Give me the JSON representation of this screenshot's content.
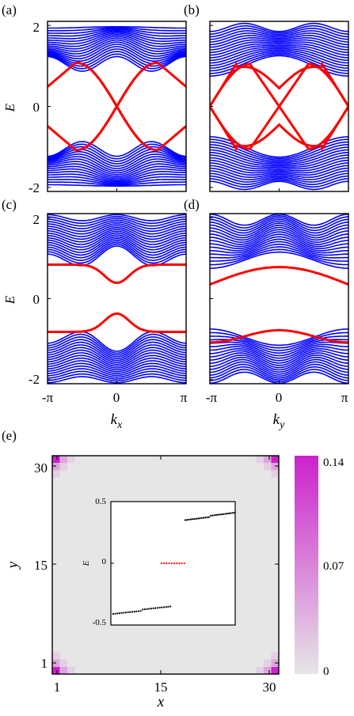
{
  "colors": {
    "bulk": "#0000ff",
    "edge": "#ff0000",
    "axis": "#000000",
    "map_low": "#e6e6e6",
    "map_high": "#cc22cc",
    "inset_bulk": "#000000",
    "inset_zero": "#ff0000"
  },
  "chart_data": [
    {
      "panel_label": "(a)",
      "type": "line",
      "xlabel": "",
      "ylabel": "E",
      "xlim": [
        -3.1416,
        3.1416
      ],
      "ylim": [
        -2.1,
        2.1
      ],
      "xticks": [],
      "yticks": [
        "2",
        "0",
        "-2"
      ],
      "bulk_gap": [
        0.9,
        1.1
      ],
      "edge_states_cross_zero_at": 0.0,
      "edge_energy_at_ky_pi": 0.42
    },
    {
      "panel_label": "(b)",
      "type": "line",
      "xlabel": "",
      "ylabel": "",
      "xlim": [
        -3.1416,
        3.1416
      ],
      "ylim": [
        -2.1,
        2.1
      ],
      "xticks": [],
      "yticks": [],
      "bulk_gap": [
        0.9,
        1.1
      ],
      "edge_states_cross_zero_at": -3.1416,
      "edge_energy_at_k0": 0.45
    },
    {
      "panel_label": "(c)",
      "type": "line",
      "xlabel": "k_x",
      "ylabel": "E",
      "xlim": [
        -3.1416,
        3.1416
      ],
      "ylim": [
        -2.1,
        2.1
      ],
      "xticks": [
        "-π",
        "0",
        "π"
      ],
      "yticks": [
        "2",
        "0",
        "-2"
      ],
      "edge_gap_min": 0.35,
      "edge_energy_at_boundary": 0.8
    },
    {
      "panel_label": "(d)",
      "type": "line",
      "xlabel": "k_y",
      "ylabel": "",
      "xlim": [
        -3.1416,
        3.1416
      ],
      "ylim": [
        -2.1,
        2.1
      ],
      "xticks": [
        "-π",
        "0",
        "π"
      ],
      "yticks": [],
      "edge_energy_at_k0": 0.78,
      "edge_energy_at_boundary": 0.35
    },
    {
      "panel_label": "(e)",
      "type": "heatmap",
      "xlabel": "x",
      "ylabel": "y",
      "xticks": [
        "1",
        "15",
        "30"
      ],
      "yticks": [
        "30",
        "15",
        "1"
      ],
      "grid_size": 30,
      "corner_weight": 0.14,
      "colorbar_ticks": [
        "0.14",
        "0.07",
        "0"
      ],
      "inset": {
        "type": "scatter",
        "ylabel": "E",
        "ylim": [
          -0.5,
          0.5
        ],
        "yticks": [
          "0.5",
          "0",
          "-0.5"
        ],
        "zero_modes": 4,
        "zero_mode_energy": 0.0,
        "lower_band_range": [
          -0.41,
          -0.36
        ],
        "upper_band_range": [
          0.36,
          0.41
        ]
      }
    }
  ]
}
